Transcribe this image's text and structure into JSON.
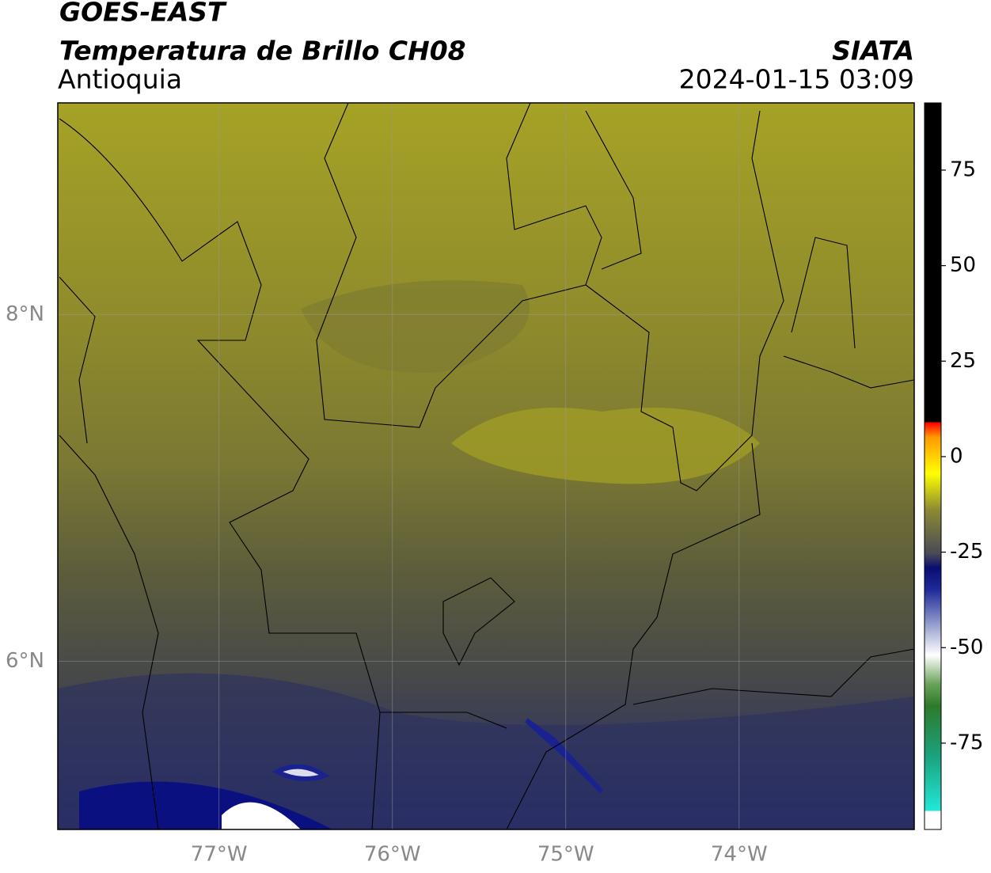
{
  "header": {
    "title": "GOES-EAST",
    "subtitle": "Temperatura de Brillo CH08",
    "region": "Antioquia",
    "source": "SIATA",
    "datetime": "2024-01-15 03:09"
  },
  "map": {
    "lonlim": [
      -77.93,
      -72.99
    ],
    "latlim": [
      5.03,
      9.22
    ],
    "lon_ticks": [
      {
        "value": -77,
        "label": "77°W"
      },
      {
        "value": -76,
        "label": "76°W"
      },
      {
        "value": -75,
        "label": "75°W"
      },
      {
        "value": -74,
        "label": "74°W"
      }
    ],
    "lat_ticks": [
      {
        "value": 8,
        "label": "8°N"
      },
      {
        "value": 6,
        "label": "6°N"
      }
    ]
  },
  "colorbar": {
    "lim": [
      -97.6,
      92.6
    ],
    "ticks": [
      75,
      50,
      25,
      0,
      -25,
      -50,
      -75
    ]
  }
}
